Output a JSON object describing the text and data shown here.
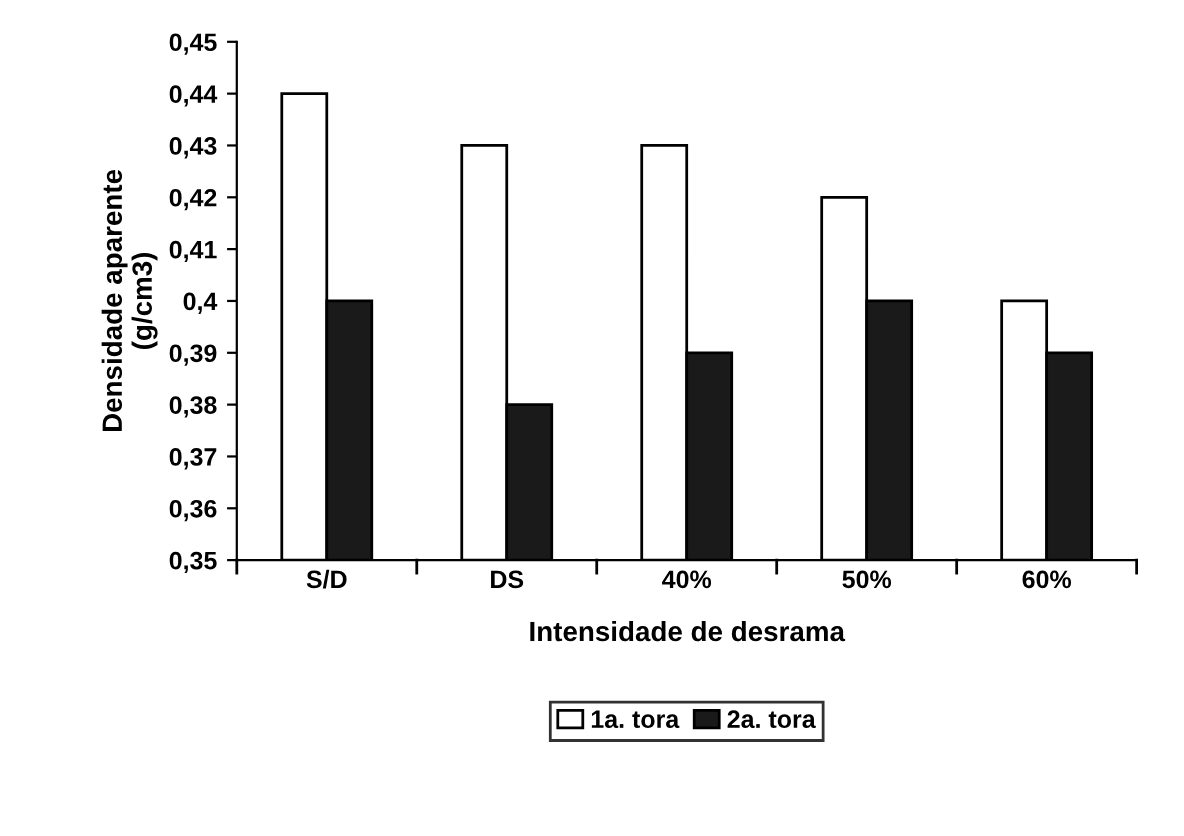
{
  "chart_data": {
    "type": "bar",
    "xlabel": "Intensidade de desrama",
    "ylabel": "Densidade aparente\n(g/cm3)",
    "categories": [
      "S/D",
      "DS",
      "40%",
      "50%",
      "60%"
    ],
    "series": [
      {
        "name": "1a. tora",
        "color": "#ffffff",
        "values": [
          0.44,
          0.43,
          0.43,
          0.42,
          0.4
        ]
      },
      {
        "name": "2a. tora",
        "color": "#1a1a1a",
        "values": [
          0.4,
          0.38,
          0.39,
          0.4,
          0.39
        ]
      }
    ],
    "ylim": [
      0.35,
      0.45
    ],
    "yticks": [
      {
        "value": 0.35,
        "label": "0,35"
      },
      {
        "value": 0.36,
        "label": "0,36"
      },
      {
        "value": 0.37,
        "label": "0,37"
      },
      {
        "value": 0.38,
        "label": "0,38"
      },
      {
        "value": 0.39,
        "label": "0,39"
      },
      {
        "value": 0.4,
        "label": "0,4"
      },
      {
        "value": 0.41,
        "label": "0,41"
      },
      {
        "value": 0.42,
        "label": "0,42"
      },
      {
        "value": 0.43,
        "label": "0,43"
      },
      {
        "value": 0.44,
        "label": "0,44"
      },
      {
        "value": 0.45,
        "label": "0,45"
      }
    ],
    "grid": false,
    "legend": "bottom"
  }
}
